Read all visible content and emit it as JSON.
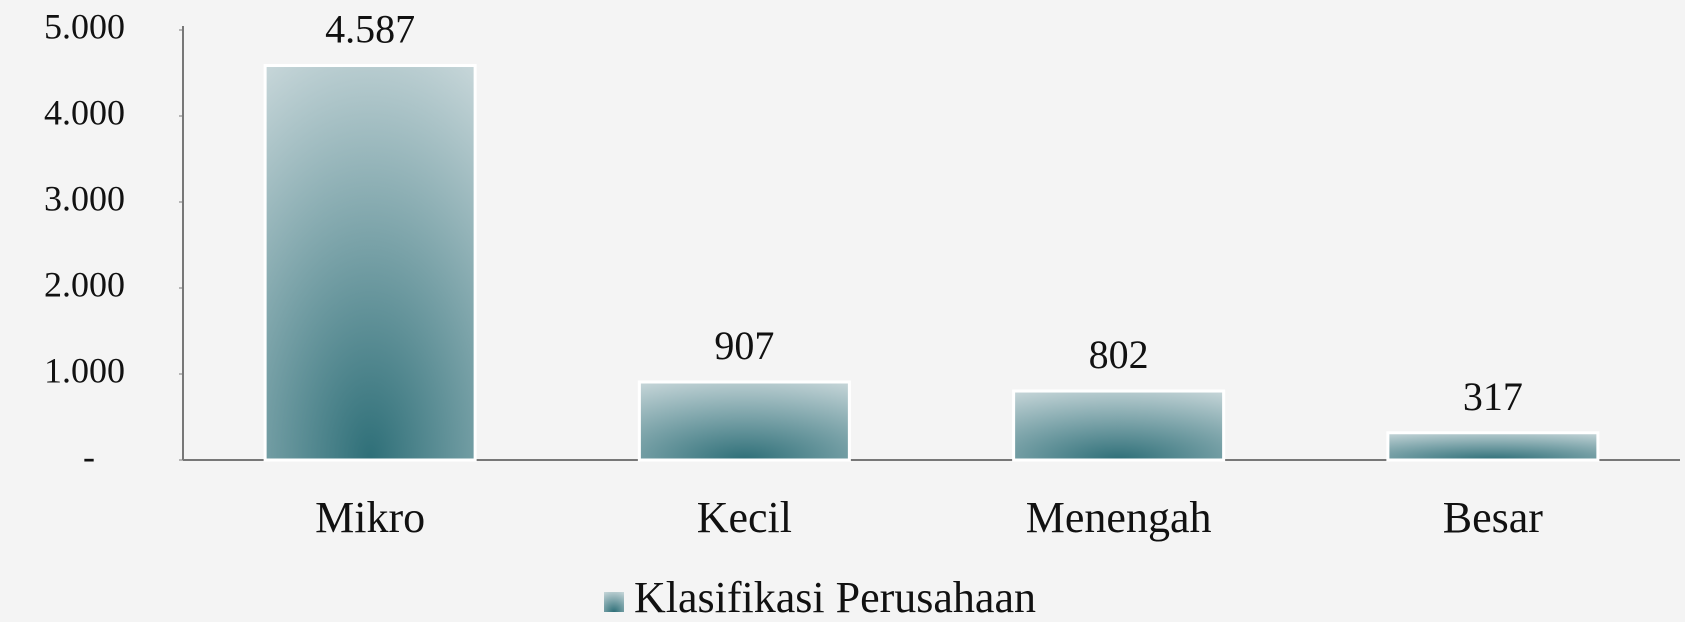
{
  "chart_data": {
    "type": "bar",
    "categories": [
      "Mikro",
      "Kecil",
      "Menengah",
      "Besar"
    ],
    "series": [
      {
        "name": "Klasifikasi Perusahaan",
        "color": "#2e6f78",
        "values": [
          4587,
          907,
          802,
          317
        ],
        "value_labels": [
          "4.587",
          "907",
          "802",
          "317"
        ]
      }
    ],
    "ylim": [
      0,
      5000
    ],
    "yticks": [
      {
        "value": 0,
        "label": "-"
      },
      {
        "value": 1000,
        "label": "1.000"
      },
      {
        "value": 2000,
        "label": "2.000"
      },
      {
        "value": 3000,
        "label": "3.000"
      },
      {
        "value": 4000,
        "label": "4.000"
      },
      {
        "value": 5000,
        "label": "5.000"
      }
    ],
    "legend": "bottom",
    "grid": false
  }
}
